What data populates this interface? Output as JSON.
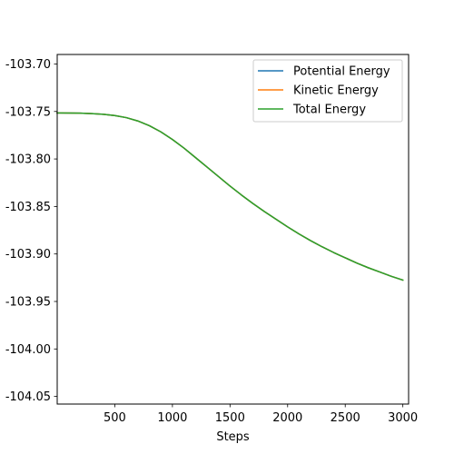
{
  "chart_data": {
    "type": "line",
    "title": "",
    "xlabel": "Steps",
    "ylabel": "",
    "xlim": [
      0,
      3050
    ],
    "ylim": [
      -104.058,
      -103.69
    ],
    "xticks": [
      500,
      1000,
      1500,
      2000,
      2500,
      3000
    ],
    "yticks": [
      -103.7,
      -103.75,
      -103.8,
      -103.85,
      -103.9,
      -103.95,
      -104.0,
      -104.05
    ],
    "ytick_labels": [
      "-103.70",
      "-103.75",
      "-103.80",
      "-103.85",
      "-103.90",
      "-103.95",
      "-104.00",
      "-104.05"
    ],
    "grid": false,
    "legend_position": "top-right",
    "x": [
      0,
      100,
      200,
      300,
      400,
      500,
      600,
      700,
      800,
      900,
      1000,
      1100,
      1200,
      1300,
      1400,
      1500,
      1600,
      1700,
      1800,
      1900,
      2000,
      2100,
      2200,
      2300,
      2400,
      2500,
      2600,
      2700,
      2800,
      2900,
      3000
    ],
    "series": [
      {
        "name": "Potential Energy",
        "color": "#1f77b4",
        "values": [
          -103.7515,
          -103.7516,
          -103.7518,
          -103.7522,
          -103.753,
          -103.7543,
          -103.7565,
          -103.76,
          -103.765,
          -103.7715,
          -103.7795,
          -103.7885,
          -103.7985,
          -103.8085,
          -103.8185,
          -103.8285,
          -103.838,
          -103.847,
          -103.8555,
          -103.8635,
          -103.8715,
          -103.879,
          -103.886,
          -103.8925,
          -103.8985,
          -103.904,
          -103.9095,
          -103.9145,
          -103.919,
          -103.9235,
          -103.9275
        ]
      },
      {
        "name": "Kinetic Energy",
        "color": "#ff7f0e",
        "values": [
          -103.7515,
          -103.7516,
          -103.7518,
          -103.7522,
          -103.753,
          -103.7543,
          -103.7565,
          -103.76,
          -103.765,
          -103.7715,
          -103.7795,
          -103.7885,
          -103.7985,
          -103.8085,
          -103.8185,
          -103.8285,
          -103.838,
          -103.847,
          -103.8555,
          -103.8635,
          -103.8715,
          -103.879,
          -103.886,
          -103.8925,
          -103.8985,
          -103.904,
          -103.9095,
          -103.9145,
          -103.919,
          -103.9235,
          -103.9275
        ]
      },
      {
        "name": "Total Energy",
        "color": "#2ca02c",
        "values": [
          -103.7515,
          -103.7516,
          -103.7518,
          -103.7522,
          -103.753,
          -103.7543,
          -103.7565,
          -103.76,
          -103.765,
          -103.7715,
          -103.7795,
          -103.7885,
          -103.7985,
          -103.8085,
          -103.8185,
          -103.8285,
          -103.838,
          -103.847,
          -103.8555,
          -103.8635,
          -103.8715,
          -103.879,
          -103.886,
          -103.8925,
          -103.8985,
          -103.904,
          -103.9095,
          -103.9145,
          -103.919,
          -103.9235,
          -103.9275
        ]
      }
    ]
  }
}
